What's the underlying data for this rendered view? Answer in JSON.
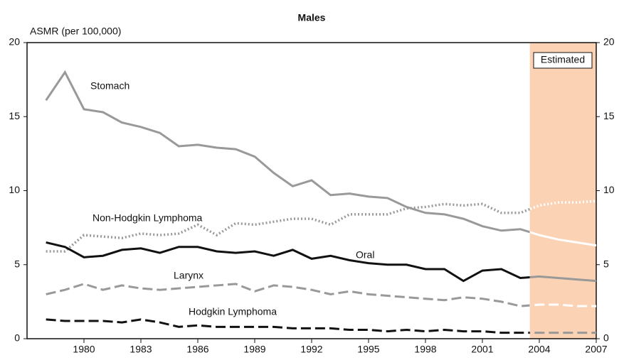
{
  "chart_data": {
    "type": "line",
    "title": "Males",
    "ylabel": "ASMR (per 100,000)",
    "annotation": "Estimated",
    "estimated_start": 2003.5,
    "estimated_color": "#fbd3b4",
    "x": [
      1978,
      1979,
      1980,
      1981,
      1982,
      1983,
      1984,
      1985,
      1986,
      1987,
      1988,
      1989,
      1990,
      1991,
      1992,
      1993,
      1994,
      1995,
      1996,
      1997,
      1998,
      1999,
      2000,
      2001,
      2002,
      2003,
      2004,
      2005,
      2006,
      2007
    ],
    "series": [
      {
        "name": "Stomach",
        "color": "#999999",
        "estimated_line_color": "#ffffff",
        "style": "solid",
        "values": [
          16.1,
          18.0,
          15.5,
          15.3,
          14.6,
          14.3,
          13.9,
          13.0,
          13.1,
          12.9,
          12.8,
          12.3,
          11.2,
          10.3,
          10.7,
          9.7,
          9.8,
          9.6,
          9.5,
          8.9,
          8.5,
          8.4,
          8.1,
          7.6,
          7.3,
          7.4,
          7.0,
          6.7,
          6.5,
          6.3
        ]
      },
      {
        "name": "Non-Hodgkin Lymphoma",
        "color": "#999999",
        "estimated_line_color": "#ffffff",
        "style": "dotted",
        "values": [
          5.9,
          5.9,
          7.0,
          6.9,
          6.8,
          7.1,
          7.0,
          7.1,
          7.7,
          7.0,
          7.8,
          7.7,
          7.9,
          8.1,
          8.1,
          7.7,
          8.4,
          8.4,
          8.4,
          8.8,
          8.9,
          9.1,
          9.0,
          9.1,
          8.5,
          8.5,
          9.0,
          9.2,
          9.2,
          9.3
        ]
      },
      {
        "name": "Oral",
        "color": "#111111",
        "estimated_line_color": "#999999",
        "style": "solid",
        "values": [
          6.5,
          6.2,
          5.5,
          5.6,
          6.0,
          6.1,
          5.8,
          6.2,
          6.2,
          5.9,
          5.8,
          5.9,
          5.6,
          6.0,
          5.4,
          5.6,
          5.3,
          5.1,
          5.0,
          5.0,
          4.7,
          4.7,
          3.9,
          4.6,
          4.7,
          4.1,
          4.2,
          4.1,
          4.0,
          3.9
        ]
      },
      {
        "name": "Larynx",
        "color": "#999999",
        "estimated_line_color": "#ffffff",
        "style": "dashed",
        "values": [
          3.0,
          3.3,
          3.7,
          3.3,
          3.6,
          3.4,
          3.3,
          3.4,
          3.5,
          3.6,
          3.7,
          3.2,
          3.6,
          3.5,
          3.3,
          3.0,
          3.2,
          3.0,
          2.9,
          2.8,
          2.7,
          2.6,
          2.8,
          2.7,
          2.5,
          2.2,
          2.3,
          2.3,
          2.2,
          2.2
        ]
      },
      {
        "name": "Hodgkin Lymphoma",
        "color": "#111111",
        "estimated_line_color": "#999999",
        "style": "dashed",
        "values": [
          1.3,
          1.2,
          1.2,
          1.2,
          1.1,
          1.3,
          1.1,
          0.8,
          0.9,
          0.8,
          0.8,
          0.8,
          0.8,
          0.7,
          0.7,
          0.7,
          0.6,
          0.6,
          0.5,
          0.6,
          0.5,
          0.6,
          0.5,
          0.5,
          0.4,
          0.4,
          0.4,
          0.4,
          0.4,
          0.4
        ]
      }
    ],
    "xlim": [
      1977,
      2007
    ],
    "xticks": [
      1980,
      1983,
      1986,
      1989,
      1992,
      1995,
      1998,
      2001,
      2004,
      2007
    ],
    "ylim": [
      0,
      20
    ],
    "yticks": [
      0,
      5,
      10,
      15,
      20
    ],
    "y2lim": [
      0,
      20
    ],
    "y2ticks": [
      0,
      5,
      10,
      15,
      20
    ]
  }
}
